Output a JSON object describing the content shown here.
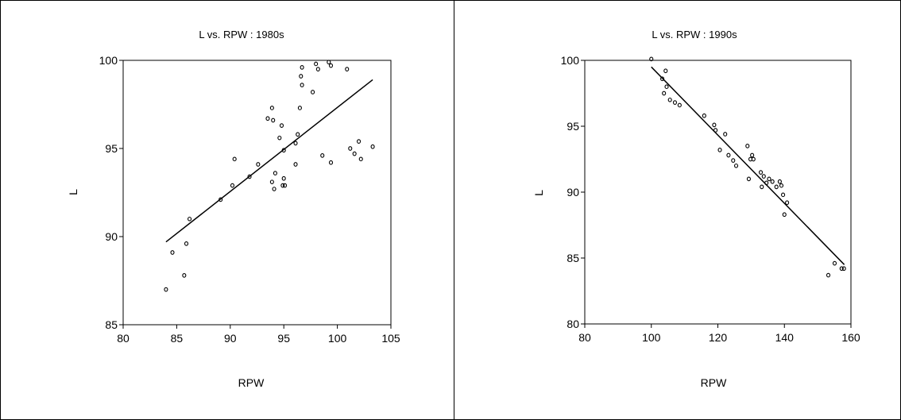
{
  "chart_data": [
    {
      "type": "scatter",
      "title": "L vs. RPW : 1980s",
      "xlabel": "RPW",
      "ylabel": "L",
      "xlim": [
        80,
        105
      ],
      "ylim": [
        85,
        100
      ],
      "xticks": [
        "80",
        "85",
        "90",
        "95",
        "100",
        "105"
      ],
      "yticks": [
        "85",
        "90",
        "95",
        "100"
      ],
      "grid": false,
      "points": [
        [
          84.0,
          87.0
        ],
        [
          84.6,
          89.1
        ],
        [
          85.7,
          87.8
        ],
        [
          85.9,
          89.6
        ],
        [
          86.2,
          91.0
        ],
        [
          89.1,
          92.1
        ],
        [
          90.2,
          92.9
        ],
        [
          90.4,
          94.4
        ],
        [
          91.8,
          93.4
        ],
        [
          92.6,
          94.1
        ],
        [
          93.5,
          96.7
        ],
        [
          93.9,
          97.3
        ],
        [
          93.9,
          93.1
        ],
        [
          94.0,
          96.6
        ],
        [
          94.1,
          92.7
        ],
        [
          94.2,
          93.6
        ],
        [
          94.6,
          95.6
        ],
        [
          94.8,
          96.3
        ],
        [
          94.9,
          92.9
        ],
        [
          95.0,
          93.3
        ],
        [
          95.0,
          94.9
        ],
        [
          95.1,
          92.9
        ],
        [
          96.1,
          94.1
        ],
        [
          96.1,
          95.3
        ],
        [
          96.3,
          95.8
        ],
        [
          96.5,
          97.3
        ],
        [
          96.6,
          99.1
        ],
        [
          96.7,
          98.6
        ],
        [
          96.7,
          99.6
        ],
        [
          97.7,
          98.2
        ],
        [
          98.0,
          99.8
        ],
        [
          98.2,
          99.5
        ],
        [
          98.6,
          94.6
        ],
        [
          99.2,
          99.9
        ],
        [
          99.4,
          99.7
        ],
        [
          99.4,
          94.2
        ],
        [
          100.9,
          99.5
        ],
        [
          101.2,
          95.0
        ],
        [
          101.6,
          94.7
        ],
        [
          102.0,
          95.4
        ],
        [
          102.2,
          94.4
        ],
        [
          103.3,
          95.1
        ]
      ],
      "fit_line": [
        [
          84.0,
          89.7
        ],
        [
          103.3,
          98.9
        ]
      ]
    },
    {
      "type": "scatter",
      "title": "L vs. RPW : 1990s",
      "xlabel": "RPW",
      "ylabel": "L",
      "xlim": [
        80,
        160
      ],
      "ylim": [
        80,
        100
      ],
      "xticks": [
        "80",
        "100",
        "120",
        "140",
        "160"
      ],
      "yticks": [
        "80",
        "85",
        "90",
        "95",
        "100"
      ],
      "grid": false,
      "points": [
        [
          100.0,
          100.1
        ],
        [
          103.3,
          98.6
        ],
        [
          103.8,
          97.5
        ],
        [
          104.3,
          99.2
        ],
        [
          104.6,
          98.0
        ],
        [
          105.6,
          97.0
        ],
        [
          107.1,
          96.8
        ],
        [
          108.5,
          96.6
        ],
        [
          115.9,
          95.8
        ],
        [
          118.9,
          95.1
        ],
        [
          119.3,
          94.7
        ],
        [
          120.6,
          93.2
        ],
        [
          122.2,
          94.4
        ],
        [
          123.2,
          92.8
        ],
        [
          124.6,
          92.4
        ],
        [
          125.5,
          92.0
        ],
        [
          128.9,
          93.5
        ],
        [
          129.3,
          91.0
        ],
        [
          129.8,
          92.5
        ],
        [
          130.3,
          92.8
        ],
        [
          130.7,
          92.5
        ],
        [
          132.9,
          91.5
        ],
        [
          133.2,
          90.4
        ],
        [
          133.8,
          91.2
        ],
        [
          134.6,
          90.7
        ],
        [
          135.4,
          91.0
        ],
        [
          136.4,
          90.8
        ],
        [
          137.6,
          90.4
        ],
        [
          138.6,
          90.8
        ],
        [
          139.1,
          90.5
        ],
        [
          139.6,
          89.8
        ],
        [
          140.0,
          88.3
        ],
        [
          140.8,
          89.2
        ],
        [
          153.2,
          83.7
        ],
        [
          155.1,
          84.6
        ],
        [
          157.2,
          84.2
        ],
        [
          157.9,
          84.2
        ]
      ],
      "fit_line": [
        [
          100.0,
          99.5
        ],
        [
          158.0,
          84.5
        ]
      ]
    }
  ]
}
